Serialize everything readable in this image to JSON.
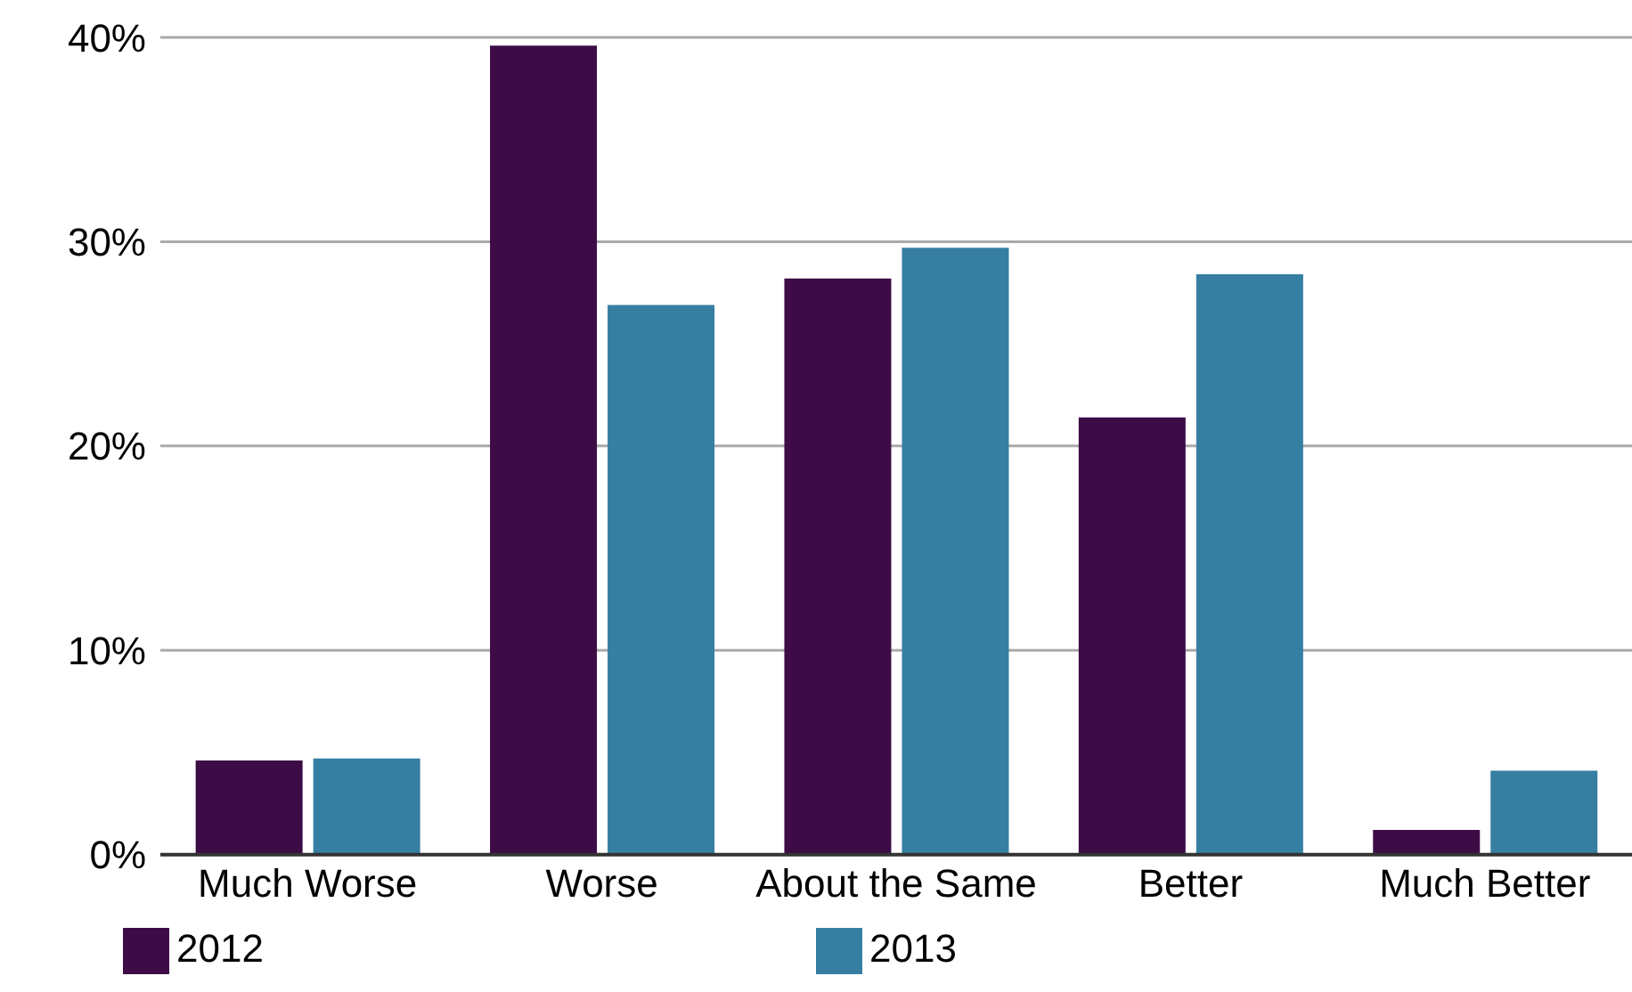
{
  "chart_data": {
    "type": "bar",
    "categories": [
      "Much Worse",
      "Worse",
      "About the Same",
      "Better",
      "Much Better"
    ],
    "series": [
      {
        "name": "2012",
        "color": "#3d0c47",
        "values": [
          4.6,
          39.6,
          28.2,
          21.4,
          1.2
        ]
      },
      {
        "name": "2013",
        "color": "#367fa3",
        "values": [
          4.7,
          26.9,
          29.7,
          28.4,
          4.1
        ]
      }
    ],
    "ylim": [
      0,
      40
    ],
    "yticks": [
      {
        "value": 0,
        "label": "0%"
      },
      {
        "value": 10,
        "label": "10%"
      },
      {
        "value": 20,
        "label": "20%"
      },
      {
        "value": 30,
        "label": "30%"
      },
      {
        "value": 40,
        "label": "40%"
      }
    ],
    "grid": "y",
    "legend": "bottom"
  }
}
